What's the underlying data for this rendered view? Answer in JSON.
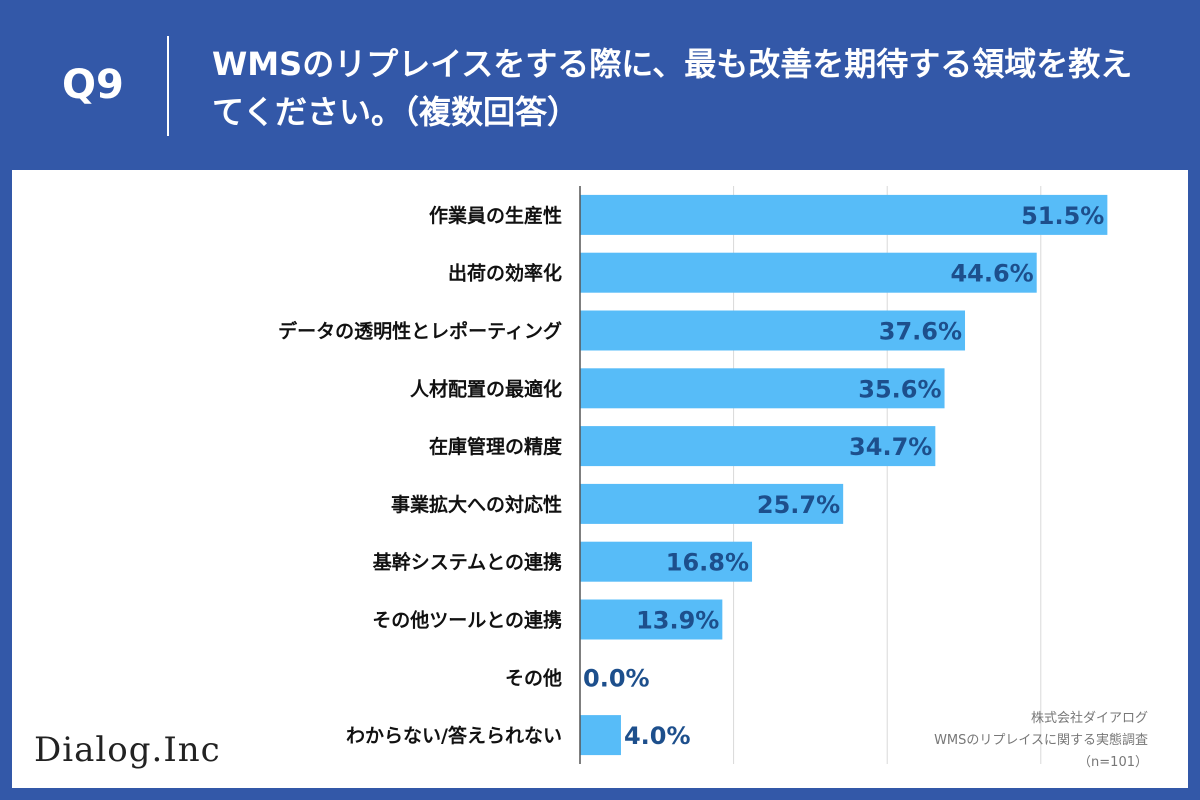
{
  "question": {
    "number": "Q9",
    "title": "WMSのリプレイスをする際に、最も改善を期待する領域を教えてください。（複数回答）"
  },
  "brand": {
    "logo_text": "Dialog.Inc"
  },
  "source": {
    "company": "株式会社ダイアログ",
    "survey": "WMSのリプレイスに関する実態調査",
    "sample": "（n=101）"
  },
  "colors": {
    "header_bg": "#3358a8",
    "bar": "#57bcf8",
    "value_label": "#1d4f8c",
    "grid": "#d9d9d9"
  },
  "chart_data": {
    "type": "bar",
    "orientation": "horizontal",
    "title": "WMSのリプレイスをする際に、最も改善を期待する領域を教えてください。（複数回答）",
    "categories": [
      "作業員の生産性",
      "出荷の効率化",
      "データの透明性とレポーティング",
      "人材配置の最適化",
      "在庫管理の精度",
      "事業拡大への対応性",
      "基幹システムとの連携",
      "その他ツールとの連携",
      "その他",
      "わからない/答えられない"
    ],
    "values": [
      51.5,
      44.6,
      37.6,
      35.6,
      34.7,
      25.7,
      16.8,
      13.9,
      0.0,
      4.0
    ],
    "value_labels": [
      "51.5%",
      "44.6%",
      "37.6%",
      "35.6%",
      "34.7%",
      "25.7%",
      "16.8%",
      "13.9%",
      "0.0%",
      "4.0%"
    ],
    "unit": "%",
    "xlim": [
      0,
      60
    ],
    "grid": true,
    "xlabel": "",
    "ylabel": ""
  }
}
